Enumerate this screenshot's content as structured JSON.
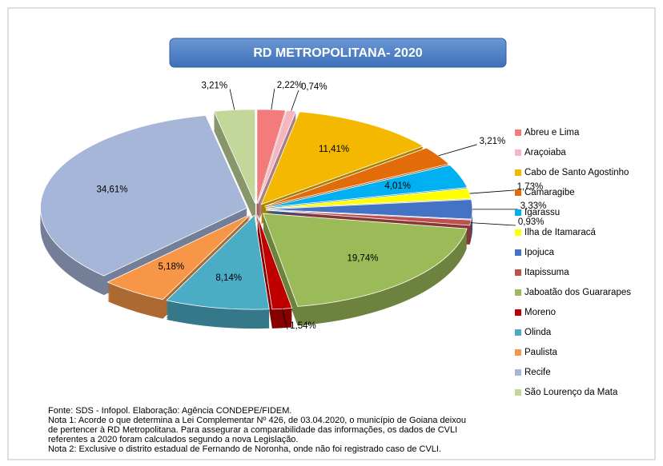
{
  "chart_data": {
    "type": "pie",
    "title": "RD METROPOLITANA- 2020",
    "categories": [
      "Abreu e Lima",
      "Araçoiaba",
      "Cabo de Santo Agostinho",
      "Camaragibe",
      "Igarassu",
      "Ilha de Itamaracá",
      "Ipojuca",
      "Itapissuma",
      "Jaboatão dos Guararapes",
      "Moreno",
      "Olinda",
      "Paulista",
      "Recife",
      "São Lourenço da Mata"
    ],
    "values": [
      2.22,
      0.74,
      11.41,
      3.21,
      4.01,
      1.73,
      3.33,
      0.93,
      19.74,
      1.54,
      8.14,
      5.18,
      34.61,
      3.21
    ],
    "value_labels": [
      "2,22%",
      "0,74%",
      "11,41%",
      "3,21%",
      "4,01%",
      "1,73%",
      "3,33%",
      "0,93%",
      "19,74%",
      "1,54%",
      "8,14%",
      "5,18%",
      "34,61%",
      "3,21%"
    ],
    "colors": [
      "#f47b7b",
      "#f4b6c0",
      "#f5b800",
      "#e26b0a",
      "#00b0f0",
      "#ffff00",
      "#4472c4",
      "#c0504d",
      "#9bbb59",
      "#c00000",
      "#4bacc6",
      "#f79646",
      "#a6b6d8",
      "#c4d79b"
    ],
    "legend": "right",
    "notes": [
      "Fonte: SDS - Infopol.  Elaboração: Agência CONDEPE/FIDEM.",
      "Nota 1: Acorde o que determina a Lei  Complementar Nº 426, de 03.04.2020, o município de Goiana deixou",
      "de pertencer à RD Metropolitana. Para assegurar a comparabilidade das informações, os dados de CVLI",
      "referentes a 2020 foram calculados segundo a nova Legislação.",
      "Nota 2: Exclusive o distrito estadual de Fernando de Noronha, onde não foi registrado caso de CVLI."
    ]
  }
}
